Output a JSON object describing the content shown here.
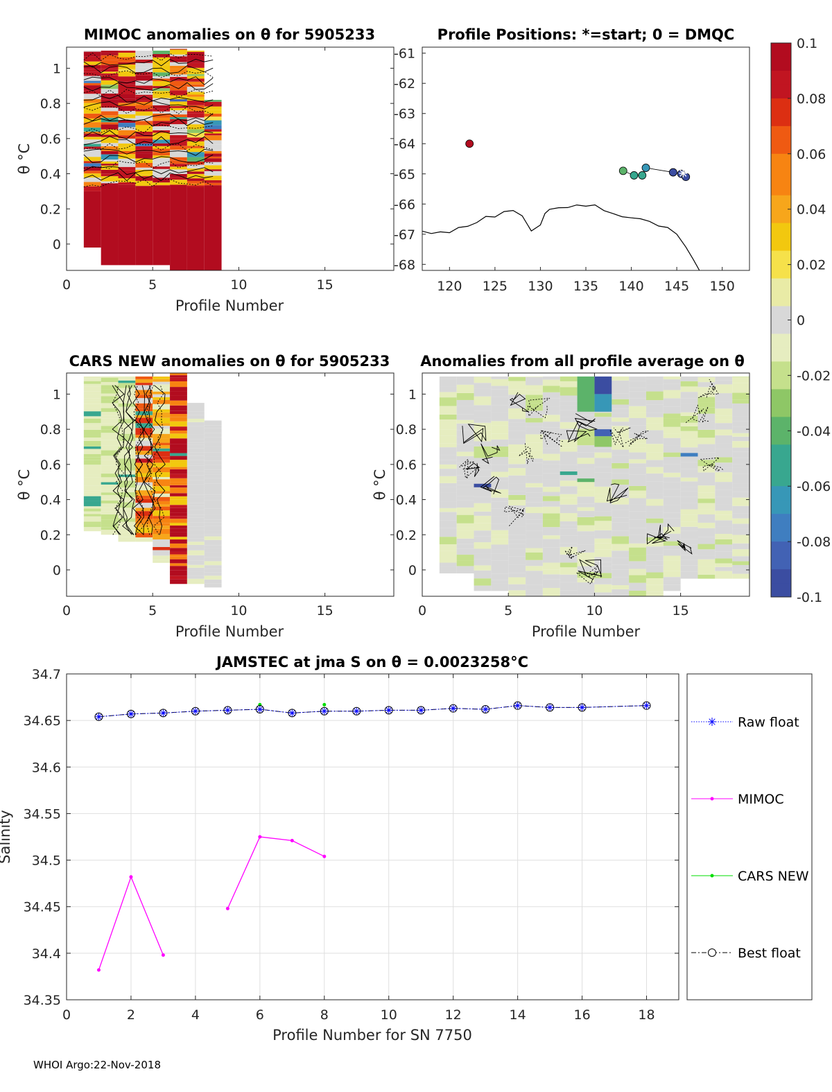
{
  "footer": "WHOI Argo:22-Nov-2018",
  "colorbar": {
    "ticks": [
      "0.1",
      "0.08",
      "0.06",
      "0.04",
      "0.02",
      "0",
      "-0.02",
      "-0.04",
      "-0.06",
      "-0.08",
      "-0.1"
    ],
    "palette": [
      "#3b4da1",
      "#4262b4",
      "#3f7ec0",
      "#3797b7",
      "#38a78f",
      "#5cb36a",
      "#8ec766",
      "#c5e08c",
      "#e6edc0",
      "#d8d8d8",
      "#e9eba6",
      "#f6e14a",
      "#f2c80f",
      "#f7a61b",
      "#f78412",
      "#ef5a12",
      "#dc2f12",
      "#c11521",
      "#b20c1f"
    ]
  },
  "chart_data": [
    {
      "id": "mimoc",
      "type": "heatmap",
      "title": "MIMOC anomalies on θ  for 5905233",
      "xlabel": "Profile Number",
      "ylabel": "θ °C",
      "xlim": [
        0,
        19
      ],
      "ylim": [
        -0.15,
        1.12
      ],
      "xticks": [
        "0",
        "5",
        "10",
        "15"
      ],
      "yticks": [
        "0",
        "0.2",
        "0.4",
        "0.6",
        "0.8",
        "1"
      ],
      "columns": [
        {
          "profile": 1,
          "ymin": -0.02,
          "ymax": 1.1
        },
        {
          "profile": 2,
          "ymin": -0.12,
          "ymax": 1.1
        },
        {
          "profile": 3,
          "ymin": -0.12,
          "ymax": 1.1
        },
        {
          "profile": 4,
          "ymin": -0.12,
          "ymax": 1.1
        },
        {
          "profile": 5,
          "ymin": -0.12,
          "ymax": 1.1
        },
        {
          "profile": 6,
          "ymin": -0.15,
          "ymax": 1.11
        },
        {
          "profile": 7,
          "ymin": -0.15,
          "ymax": 1.1
        },
        {
          "profile": 8,
          "ymin": -0.15,
          "ymax": 0.82
        }
      ],
      "deep_anomaly": 0.1
    },
    {
      "id": "positions",
      "type": "scatter",
      "title": "Profile Positions: *=start; 0 = DMQC",
      "xlim": [
        117,
        153
      ],
      "ylim": [
        -68.2,
        -60.8
      ],
      "xticks": [
        "120",
        "125",
        "130",
        "135",
        "140",
        "145",
        "150"
      ],
      "yticks": [
        "-61",
        "-62",
        "-63",
        "-64",
        "-65",
        "-66",
        "-67",
        "-68"
      ],
      "points": [
        {
          "lon": 122.2,
          "lat": -64.0,
          "anomaly": 0.1
        },
        {
          "lon": 139.1,
          "lat": -64.9,
          "anomaly": -0.045
        },
        {
          "lon": 140.3,
          "lat": -65.05,
          "anomaly": -0.05
        },
        {
          "lon": 141.2,
          "lat": -65.05,
          "anomaly": -0.055
        },
        {
          "lon": 141.6,
          "lat": -64.8,
          "anomaly": -0.06
        },
        {
          "lon": 144.6,
          "lat": -64.95,
          "anomaly": -0.09
        },
        {
          "lon": 145.5,
          "lat": -65.0,
          "anomaly": -0.095
        },
        {
          "lon": 146.0,
          "lat": -65.1,
          "anomaly": -0.1
        }
      ],
      "start": {
        "lon": 145.7,
        "lat": -64.98
      },
      "coastline": [
        [
          117,
          -66.9
        ],
        [
          118,
          -67.0
        ],
        [
          119,
          -66.9
        ],
        [
          120,
          -66.95
        ],
        [
          121,
          -66.8
        ],
        [
          122,
          -66.75
        ],
        [
          123,
          -66.6
        ],
        [
          124,
          -66.4
        ],
        [
          125,
          -66.45
        ],
        [
          126,
          -66.25
        ],
        [
          127,
          -66.2
        ],
        [
          128,
          -66.4
        ],
        [
          129,
          -66.9
        ],
        [
          130,
          -66.7
        ],
        [
          130.5,
          -66.3
        ],
        [
          131,
          -66.2
        ],
        [
          132,
          -66.15
        ],
        [
          133,
          -66.1
        ],
        [
          134,
          -66.05
        ],
        [
          135,
          -66.1
        ],
        [
          136,
          -66.05
        ],
        [
          137,
          -66.2
        ],
        [
          138,
          -66.3
        ],
        [
          139,
          -66.4
        ],
        [
          140,
          -66.45
        ],
        [
          141,
          -66.5
        ],
        [
          142,
          -66.6
        ],
        [
          143,
          -66.7
        ],
        [
          144,
          -66.8
        ],
        [
          145,
          -67.0
        ],
        [
          146,
          -67.4
        ],
        [
          146.8,
          -67.8
        ],
        [
          147.5,
          -68.2
        ]
      ]
    },
    {
      "id": "cars",
      "type": "heatmap",
      "title": "CARS NEW anomalies on θ for 5905233",
      "xlabel": "Profile Number",
      "ylabel": "θ °C",
      "xlim": [
        0,
        19
      ],
      "ylim": [
        -0.15,
        1.12
      ],
      "xticks": [
        "0",
        "5",
        "10",
        "15"
      ],
      "yticks": [
        "0",
        "0.2",
        "0.4",
        "0.6",
        "0.8",
        "1"
      ],
      "columns": [
        {
          "profile": 1,
          "ymin": 0.22,
          "ymax": 1.1
        },
        {
          "profile": 2,
          "ymin": 0.2,
          "ymax": 1.1
        },
        {
          "profile": 3,
          "ymin": 0.16,
          "ymax": 1.1
        },
        {
          "profile": 4,
          "ymin": 0.16,
          "ymax": 1.1
        },
        {
          "profile": 5,
          "ymin": 0.04,
          "ymax": 1.1
        },
        {
          "profile": 6,
          "ymin": -0.08,
          "ymax": 1.12
        },
        {
          "profile": 7,
          "ymin": -0.08,
          "ymax": 0.95
        },
        {
          "profile": 8,
          "ymin": -0.1,
          "ymax": 0.85
        }
      ]
    },
    {
      "id": "allavg",
      "type": "heatmap",
      "title": "Anomalies from all profile average on θ",
      "xlabel": "Profile Number",
      "ylabel": "θ °C",
      "xlim": [
        0,
        19
      ],
      "ylim": [
        -0.15,
        1.12
      ],
      "xticks": [
        "0",
        "5",
        "10",
        "15"
      ],
      "yticks": [
        "0",
        "0.2",
        "0.4",
        "0.6",
        "0.8",
        "1"
      ],
      "range": [
        1,
        18
      ],
      "column_ymin": [
        -0.02,
        -0.02,
        -0.12,
        -0.12,
        -0.15,
        -0.15,
        -0.15,
        -0.15,
        -0.15,
        -0.15,
        -0.15,
        -0.15,
        -0.15,
        -0.12,
        -0.05,
        -0.05,
        -0.05,
        -0.05
      ],
      "strong_cells": [
        {
          "profile": 10,
          "ymin": 1.0,
          "ymax": 1.1,
          "anomaly": -0.09
        },
        {
          "profile": 10,
          "ymin": 0.9,
          "ymax": 1.0,
          "anomaly": -0.06
        },
        {
          "profile": 9,
          "ymin": 0.9,
          "ymax": 1.1,
          "anomaly": -0.04
        },
        {
          "profile": 10,
          "ymin": 0.76,
          "ymax": 0.8,
          "anomaly": -0.08
        },
        {
          "profile": 3,
          "ymin": 0.47,
          "ymax": 0.49,
          "anomaly": -0.09
        },
        {
          "profile": 15,
          "ymin": 0.645,
          "ymax": 0.665,
          "anomaly": -0.07
        },
        {
          "profile": 8,
          "ymin": 0.54,
          "ymax": 0.56,
          "anomaly": -0.05
        },
        {
          "profile": 9,
          "ymin": 0.5,
          "ymax": 0.52,
          "anomaly": -0.04
        },
        {
          "profile": 10,
          "ymin": 0.7,
          "ymax": 0.76,
          "anomaly": -0.035
        }
      ]
    },
    {
      "id": "salinity",
      "type": "line",
      "title": "JAMSTEC at jma S on θ = 0.0023258°C",
      "xlabel": "Profile Number for SN 7750",
      "ylabel": "Salinity",
      "xlim": [
        0,
        19
      ],
      "ylim": [
        34.35,
        34.7
      ],
      "xticks": [
        "0",
        "2",
        "4",
        "6",
        "8",
        "10",
        "12",
        "14",
        "16",
        "18"
      ],
      "yticks": [
        "34.35",
        "34.4",
        "34.45",
        "34.5",
        "34.55",
        "34.6",
        "34.65",
        "34.7"
      ],
      "x": [
        1,
        2,
        3,
        4,
        5,
        6,
        7,
        8,
        9,
        10,
        11,
        12,
        13,
        14,
        15,
        16,
        18
      ],
      "series": [
        {
          "name": "Raw float",
          "color": "#0000ff",
          "values": [
            34.654,
            34.657,
            34.658,
            34.66,
            34.661,
            34.662,
            34.658,
            34.66,
            34.66,
            34.661,
            34.661,
            34.663,
            34.662,
            34.666,
            34.664,
            34.664,
            34.666
          ]
        },
        {
          "name": "MIMOC",
          "color": "#ff00ff",
          "values": [
            34.382,
            34.482,
            34.398,
            null,
            34.448,
            34.525,
            34.521,
            34.504,
            null,
            null,
            null,
            null,
            null,
            null,
            null,
            null,
            null
          ]
        },
        {
          "name": "CARS NEW",
          "color": "#00dd00",
          "values": [
            null,
            null,
            null,
            null,
            null,
            34.667,
            null,
            34.667,
            null,
            null,
            null,
            null,
            null,
            null,
            null,
            null,
            null
          ]
        },
        {
          "name": "Best float",
          "color": "#000000",
          "values": [
            34.654,
            34.657,
            34.658,
            34.66,
            34.661,
            34.662,
            34.658,
            34.66,
            34.66,
            34.661,
            34.661,
            34.663,
            34.662,
            34.666,
            34.664,
            34.664,
            34.666
          ]
        }
      ]
    }
  ]
}
